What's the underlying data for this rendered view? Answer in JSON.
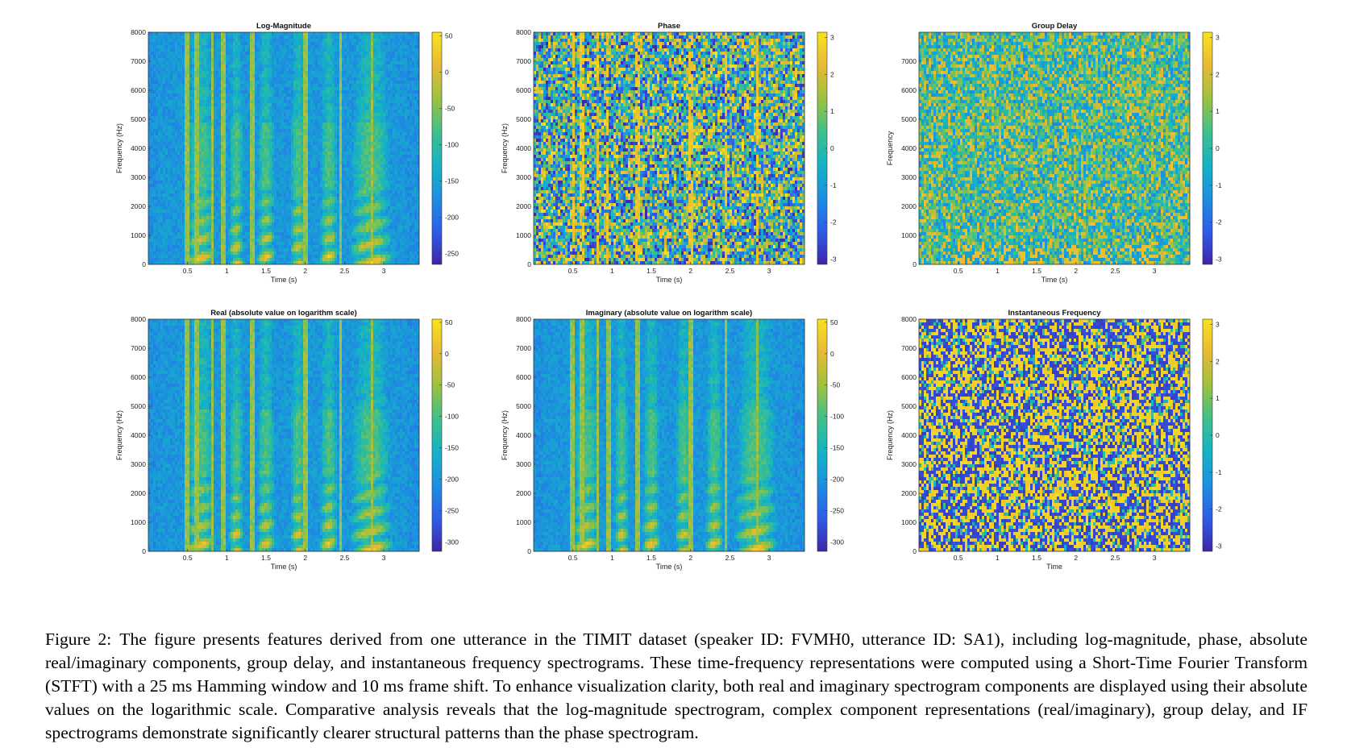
{
  "figure": {
    "label": "Figure 2:",
    "caption": "The figure presents features derived from one utterance in the TIMIT dataset (speaker ID: FVMH0, utterance ID: SA1), including log-magnitude, phase, absolute real/imaginary components, group delay, and instantaneous frequency spectrograms. These time-frequency representations were computed using a Short-Time Fourier Transform (STFT) with a 25 ms Hamming window and 10 ms frame shift. To enhance visualization clarity, both real and imaginary spectrogram components are displayed using their absolute values on the logarithmic scale. Comparative analysis reveals that the log-magnitude spectrogram, complex component representations (real/imaginary), group delay, and IF spectrograms demonstrate significantly clearer structural patterns than the phase spectrogram."
  },
  "colormap": [
    "#3e26a8",
    "#2e5de8",
    "#1d8fe0",
    "#14b3c5",
    "#3fc08a",
    "#9cc23f",
    "#e8ba34",
    "#f9e21d"
  ],
  "chart_data": [
    {
      "id": "log-magnitude",
      "type": "heatmap",
      "title": "Log-Magnitude",
      "xlabel": "Time (s)",
      "ylabel": "Frequency (Hz)",
      "xlim": [
        0,
        3.45
      ],
      "ylim": [
        0,
        8000
      ],
      "xticks": [
        "0.5",
        "1",
        "1.5",
        "2",
        "2.5",
        "3"
      ],
      "yticks": [
        "0",
        "1000",
        "2000",
        "3000",
        "4000",
        "5000",
        "6000",
        "7000",
        "8000"
      ],
      "colorbar_ticks": [
        "50",
        "0",
        "-50",
        "-100",
        "-150",
        "-200",
        "-250"
      ],
      "colorbar_range": [
        -265,
        55
      ],
      "pattern": "speech"
    },
    {
      "id": "phase",
      "type": "heatmap",
      "title": "Phase",
      "xlabel": "Time (s)",
      "ylabel": "Frequency (Hz)",
      "xlim": [
        0,
        3.45
      ],
      "ylim": [
        0,
        8000
      ],
      "xticks": [
        "0.5",
        "1",
        "1.5",
        "2",
        "2.5",
        "3"
      ],
      "yticks": [
        "0",
        "1000",
        "2000",
        "3000",
        "4000",
        "5000",
        "6000",
        "7000",
        "8000"
      ],
      "colorbar_ticks": [
        "3",
        "2",
        "1",
        "0",
        "-1",
        "-2",
        "-3"
      ],
      "colorbar_range": [
        -3.14,
        3.14
      ],
      "pattern": "noise"
    },
    {
      "id": "group-delay",
      "type": "heatmap",
      "title": "Group Delay",
      "xlabel": "Time (s)",
      "ylabel": "Frequency",
      "xlim": [
        0,
        3.45
      ],
      "ylim": [
        0,
        8000
      ],
      "xticks": [
        "0.5",
        "1",
        "1.5",
        "2",
        "2.5",
        "3"
      ],
      "yticks": [
        "0",
        "1000",
        "2000",
        "3000",
        "4000",
        "5000",
        "6000",
        "7000"
      ],
      "colorbar_ticks": [
        "3",
        "2",
        "1",
        "0",
        "-1",
        "-2",
        "-3"
      ],
      "colorbar_range": [
        -3.14,
        3.14
      ],
      "pattern": "groupdelay"
    },
    {
      "id": "real",
      "type": "heatmap",
      "title": "Real (absolute value on logarithm scale)",
      "xlabel": "Time (s)",
      "ylabel": "Frequency (Hz)",
      "xlim": [
        0,
        3.45
      ],
      "ylim": [
        0,
        8000
      ],
      "xticks": [
        "0.5",
        "1",
        "1.5",
        "2",
        "2.5",
        "3"
      ],
      "yticks": [
        "0",
        "1000",
        "2000",
        "3000",
        "4000",
        "5000",
        "6000",
        "7000",
        "8000"
      ],
      "colorbar_ticks": [
        "50",
        "0",
        "-50",
        "-100",
        "-150",
        "-200",
        "-250",
        "-300"
      ],
      "colorbar_range": [
        -315,
        55
      ],
      "pattern": "speech"
    },
    {
      "id": "imaginary",
      "type": "heatmap",
      "title": "Imaginary (absolute value on logarithm scale)",
      "xlabel": "Time (s)",
      "ylabel": "Frequency (Hz)",
      "xlim": [
        0,
        3.45
      ],
      "ylim": [
        0,
        8000
      ],
      "xticks": [
        "0.5",
        "1",
        "1.5",
        "2",
        "2.5",
        "3"
      ],
      "yticks": [
        "0",
        "1000",
        "2000",
        "3000",
        "4000",
        "5000",
        "6000",
        "7000",
        "8000"
      ],
      "colorbar_ticks": [
        "50",
        "0",
        "-50",
        "-100",
        "-150",
        "-200",
        "-250",
        "-300"
      ],
      "colorbar_range": [
        -315,
        55
      ],
      "pattern": "speech"
    },
    {
      "id": "instantaneous-frequency",
      "type": "heatmap",
      "title": "Instantaneous Frequency",
      "xlabel": "Time",
      "ylabel": "Frequency (Hz)",
      "xlim": [
        0,
        3.45
      ],
      "ylim": [
        0,
        8000
      ],
      "xticks": [
        "0.5",
        "1",
        "1.5",
        "2",
        "2.5",
        "3"
      ],
      "yticks": [
        "0",
        "1000",
        "2000",
        "3000",
        "4000",
        "5000",
        "6000",
        "7000",
        "8000"
      ],
      "colorbar_ticks": [
        "3",
        "2",
        "1",
        "0",
        "-1",
        "-2",
        "-3"
      ],
      "colorbar_range": [
        -3.14,
        3.14
      ],
      "pattern": "ifreq"
    }
  ]
}
